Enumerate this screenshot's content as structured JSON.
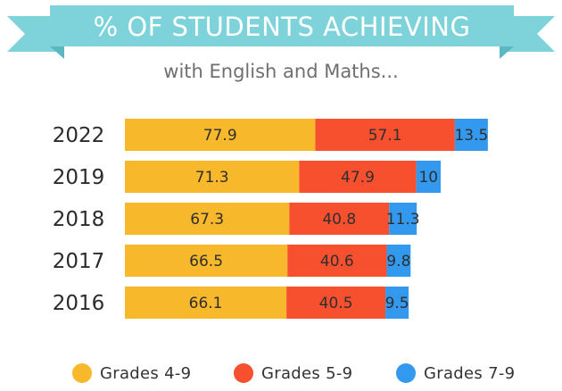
{
  "title": "% OF STUDENTS ACHIEVING",
  "subtitle": "with English and Maths...",
  "chart_data": {
    "type": "bar",
    "orientation": "horizontal",
    "stacked": true,
    "categories": [
      "2022",
      "2019",
      "2018",
      "2017",
      "2016"
    ],
    "series": [
      {
        "name": "Grades 4-9",
        "values": [
          77.9,
          71.3,
          67.3,
          66.5,
          66.1
        ],
        "color": "#F7B82B"
      },
      {
        "name": "Grades 5-9",
        "values": [
          57.1,
          47.9,
          40.8,
          40.6,
          40.5
        ],
        "color": "#F7502E"
      },
      {
        "name": "Grades 7-9",
        "values": [
          13.5,
          10,
          11.3,
          9.8,
          9.5
        ],
        "color": "#3399EE"
      }
    ],
    "grid": false,
    "legend_position": "bottom"
  },
  "colors": {
    "banner": "#7DD3D9",
    "banner_fold": "#5BB8C0"
  }
}
